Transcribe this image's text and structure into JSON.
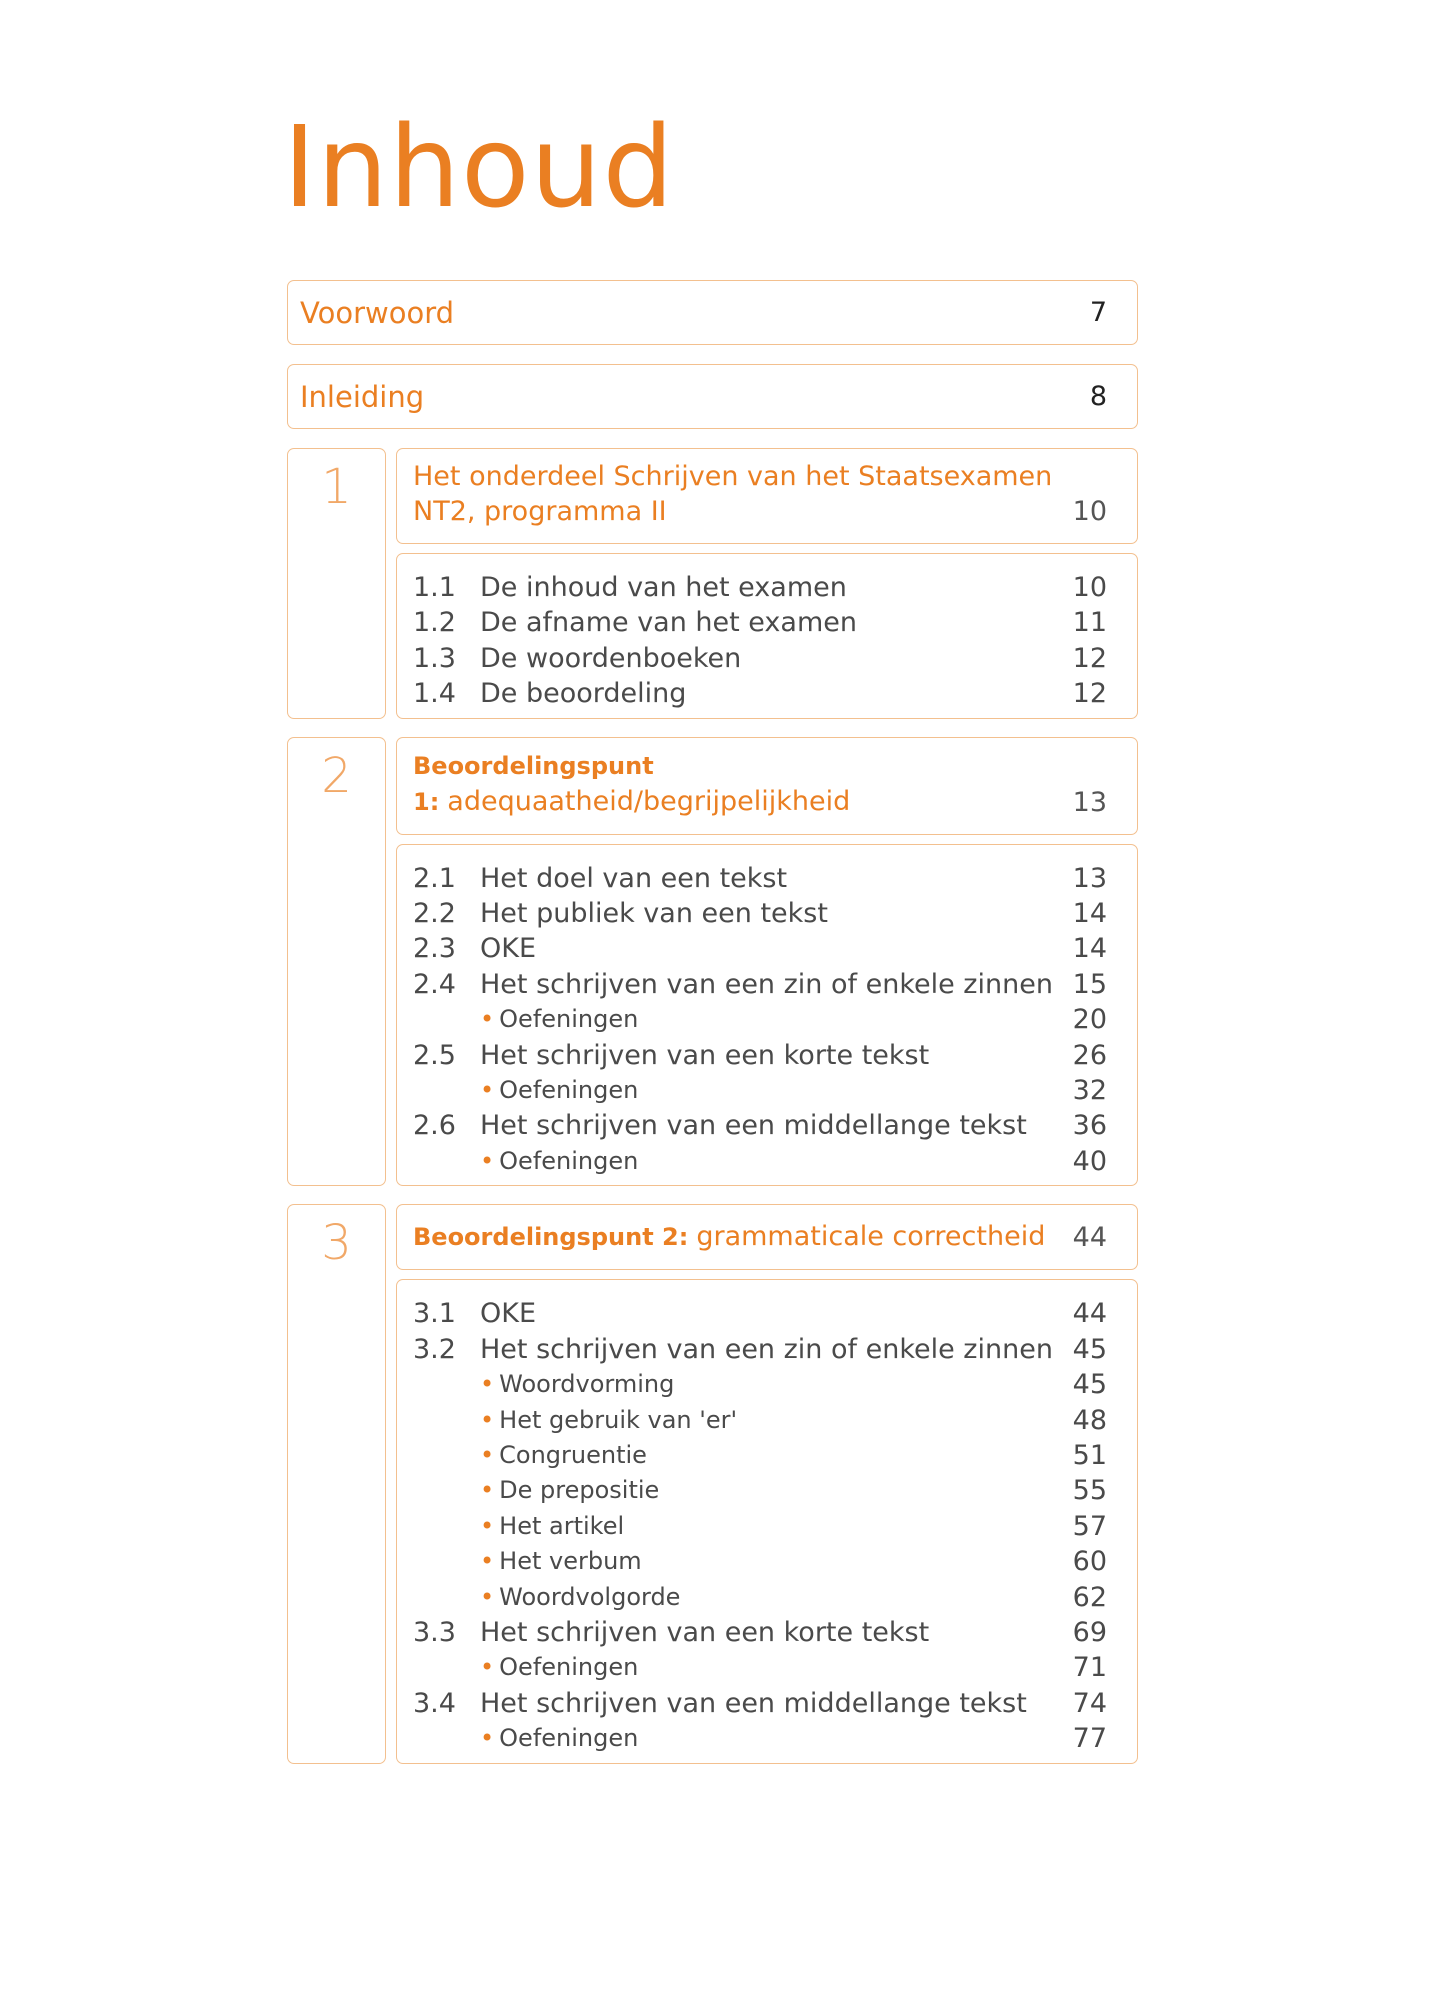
{
  "title": "Inhoud",
  "front": [
    {
      "title": "Voorwoord",
      "page": 7
    },
    {
      "title": "Inleiding",
      "page": 8
    }
  ],
  "chapters": [
    {
      "number": 1,
      "heading": "Het onderdeel Schrijven van het Staatsexamen NT2, programma II",
      "page": 10,
      "items": [
        {
          "number": "1.1",
          "title": "De inhoud van het examen",
          "page": 10
        },
        {
          "number": "1.2",
          "title": "De afname van het examen",
          "page": 11
        },
        {
          "number": "1.3",
          "title": "De woordenboeken",
          "page": 12
        },
        {
          "number": "1.4",
          "title": "De beoordeling",
          "page": 12
        }
      ]
    },
    {
      "number": 2,
      "heading_label": "Beoordelingspunt 1:",
      "heading": "adequaatheid/begrijpelijkheid",
      "page": 13,
      "items": [
        {
          "number": "2.1",
          "title": "Het doel van een tekst",
          "page": 13
        },
        {
          "number": "2.2",
          "title": "Het publiek van een tekst",
          "page": 14
        },
        {
          "number": "2.3",
          "title": "OKE",
          "page": 14
        },
        {
          "number": "2.4",
          "title": "Het schrijven van een zin of enkele zinnen",
          "page": 15
        },
        {
          "title": "Oefeningen",
          "page": 20
        },
        {
          "number": "2.5",
          "title": "Het schrijven van een korte tekst",
          "page": 26
        },
        {
          "title": "Oefeningen",
          "page": 32
        },
        {
          "number": "2.6",
          "title": "Het schrijven van een middellange tekst",
          "page": 36
        },
        {
          "title": "Oefeningen",
          "page": 40
        }
      ]
    },
    {
      "number": 3,
      "heading_label": "Beoordelingspunt 2:",
      "heading": "grammaticale correctheid",
      "page": 44,
      "items": [
        {
          "number": "3.1",
          "title": "OKE",
          "page": 44
        },
        {
          "number": "3.2",
          "title": "Het schrijven van een zin of enkele zinnen",
          "page": 45
        },
        {
          "title": "Woordvorming",
          "page": 45
        },
        {
          "title": "Het gebruik van 'er'",
          "page": 48
        },
        {
          "title": "Congruentie",
          "page": 51
        },
        {
          "title": "De prepositie",
          "page": 55
        },
        {
          "title": "Het artikel",
          "page": 57
        },
        {
          "title": "Het verbum",
          "page": 60
        },
        {
          "title": "Woordvolgorde",
          "page": 62
        },
        {
          "number": "3.3",
          "title": "Het schrijven van een korte tekst",
          "page": 69
        },
        {
          "title": "Oefeningen",
          "page": 71
        },
        {
          "number": "3.4",
          "title": "Het schrijven van een middellange tekst",
          "page": 74
        },
        {
          "title": "Oefeningen",
          "page": 77
        }
      ]
    }
  ]
}
